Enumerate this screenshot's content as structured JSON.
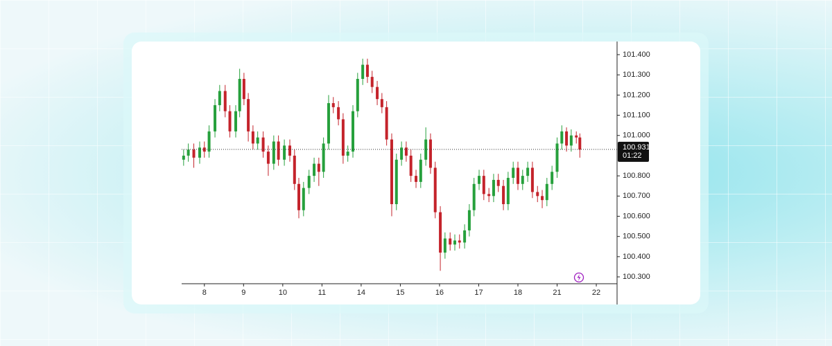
{
  "chart_data": {
    "type": "candlestick",
    "x": [
      -0.53,
      -0.41,
      -0.27,
      -0.12,
      0,
      0.12,
      0.27,
      0.39,
      0.53,
      0.65,
      0.8,
      0.9,
      1.01,
      1.12,
      1.24,
      1.36,
      1.5,
      1.63,
      1.77,
      1.89,
      2.04,
      2.18,
      2.3,
      2.41,
      2.53,
      2.67,
      2.8,
      2.92,
      3.04,
      3.17,
      3.29,
      3.42,
      3.54,
      3.66,
      3.79,
      3.91,
      4.04,
      4.16,
      4.28,
      4.41,
      4.53,
      4.65,
      4.78,
      4.9,
      5.03,
      5.15,
      5.27,
      5.4,
      5.52,
      5.65,
      5.77,
      5.89,
      6.02,
      6.14,
      6.27,
      6.39,
      6.51,
      6.64,
      6.76,
      6.88,
      7.01,
      7.13,
      7.26,
      7.38,
      7.5,
      7.63,
      7.75,
      7.88,
      8.0,
      8.12,
      8.25,
      8.37,
      8.5,
      8.62,
      8.74,
      8.87,
      9.0,
      9.12,
      9.24,
      9.36,
      9.49,
      9.58
    ],
    "open": [
      100.88,
      100.9,
      100.93,
      100.89,
      100.94,
      100.92,
      101.02,
      101.15,
      101.22,
      101.12,
      101.02,
      101.12,
      101.28,
      101.18,
      101.02,
      100.96,
      100.99,
      100.92,
      100.86,
      100.97,
      100.88,
      100.95,
      100.9,
      100.76,
      100.63,
      100.74,
      100.8,
      100.86,
      100.82,
      100.96,
      101.16,
      101.14,
      101.08,
      100.9,
      100.92,
      101.12,
      101.28,
      101.35,
      101.29,
      101.24,
      101.18,
      101.14,
      100.98,
      100.66,
      100.88,
      100.94,
      100.9,
      100.8,
      100.77,
      100.88,
      100.98,
      100.84,
      100.62,
      100.42,
      100.49,
      100.46,
      100.48,
      100.47,
      100.53,
      100.63,
      100.76,
      100.8,
      100.71,
      100.7,
      100.78,
      100.75,
      100.66,
      100.79,
      100.84,
      100.76,
      100.8,
      100.84,
      100.72,
      100.7,
      100.68,
      100.76,
      100.82,
      100.96,
      101.02,
      100.95,
      101.0,
      100.99
    ],
    "high": [
      100.93,
      100.96,
      100.96,
      100.97,
      100.97,
      101.05,
      101.18,
      101.25,
      101.25,
      101.15,
      101.15,
      101.33,
      101.31,
      101.21,
      101.05,
      101.02,
      101.02,
      100.95,
      101.0,
      101.0,
      100.98,
      100.98,
      100.93,
      100.79,
      100.77,
      100.83,
      100.89,
      100.89,
      100.99,
      101.2,
      101.19,
      101.17,
      101.11,
      100.95,
      101.15,
      101.31,
      101.38,
      101.38,
      101.32,
      101.27,
      101.21,
      101.17,
      101.01,
      100.91,
      100.97,
      100.97,
      100.93,
      100.83,
      100.91,
      101.04,
      101.01,
      100.87,
      100.65,
      100.52,
      100.52,
      100.51,
      100.51,
      100.56,
      100.66,
      100.79,
      100.83,
      100.83,
      100.74,
      100.81,
      100.81,
      100.78,
      100.82,
      100.87,
      100.87,
      100.83,
      100.87,
      100.87,
      100.75,
      100.73,
      100.79,
      100.85,
      100.99,
      101.05,
      101.04,
      101.03,
      101.02,
      101.01
    ],
    "low": [
      100.85,
      100.87,
      100.84,
      100.86,
      100.89,
      100.89,
      100.99,
      101.12,
      101.09,
      100.99,
      100.99,
      101.09,
      101.15,
      100.97,
      100.93,
      100.93,
      100.89,
      100.8,
      100.83,
      100.85,
      100.85,
      100.87,
      100.73,
      100.59,
      100.6,
      100.71,
      100.77,
      100.75,
      100.79,
      100.93,
      101.11,
      101.05,
      100.86,
      100.87,
      100.89,
      101.09,
      101.25,
      101.26,
      101.21,
      101.15,
      101.11,
      100.95,
      100.6,
      100.63,
      100.85,
      100.87,
      100.77,
      100.74,
      100.74,
      100.85,
      100.81,
      100.59,
      100.33,
      100.39,
      100.43,
      100.43,
      100.44,
      100.44,
      100.5,
      100.6,
      100.73,
      100.68,
      100.67,
      100.67,
      100.72,
      100.63,
      100.63,
      100.76,
      100.73,
      100.73,
      100.77,
      100.69,
      100.67,
      100.64,
      100.65,
      100.73,
      100.79,
      100.93,
      100.92,
      100.92,
      100.96,
      100.89
    ],
    "close": [
      100.9,
      100.93,
      100.89,
      100.94,
      100.92,
      101.02,
      101.15,
      101.22,
      101.12,
      101.02,
      101.12,
      101.28,
      101.18,
      101.02,
      100.96,
      100.99,
      100.92,
      100.86,
      100.97,
      100.88,
      100.95,
      100.9,
      100.76,
      100.63,
      100.74,
      100.8,
      100.86,
      100.82,
      100.96,
      101.16,
      101.14,
      101.08,
      100.9,
      100.92,
      101.12,
      101.28,
      101.35,
      101.29,
      101.24,
      101.18,
      101.14,
      100.98,
      100.66,
      100.88,
      100.94,
      100.9,
      100.8,
      100.77,
      100.88,
      100.98,
      100.84,
      100.62,
      100.42,
      100.49,
      100.46,
      100.48,
      100.47,
      100.53,
      100.63,
      100.76,
      100.8,
      100.71,
      100.7,
      100.78,
      100.75,
      100.66,
      100.79,
      100.84,
      100.76,
      100.8,
      100.84,
      100.72,
      100.7,
      100.68,
      100.76,
      100.82,
      100.96,
      101.02,
      100.95,
      101.0,
      100.99,
      100.93
    ],
    "up_color": "#26a03c",
    "down_color": "#c4232b",
    "xlim": [
      -0.58,
      10.53
    ],
    "xticks": [
      {
        "value": 0,
        "label": "8"
      },
      {
        "value": 1,
        "label": "9"
      },
      {
        "value": 2,
        "label": "10"
      },
      {
        "value": 3,
        "label": "11"
      },
      {
        "value": 4,
        "label": "14"
      },
      {
        "value": 5,
        "label": "15"
      },
      {
        "value": 6,
        "label": "16"
      },
      {
        "value": 7,
        "label": "17"
      },
      {
        "value": 8,
        "label": "18"
      },
      {
        "value": 9,
        "label": "21"
      },
      {
        "value": 10,
        "label": "22"
      }
    ],
    "ylim": [
      100.266,
      101.465
    ],
    "yticks": [
      {
        "value": 100.3,
        "label": "100.300"
      },
      {
        "value": 100.4,
        "label": "100.400"
      },
      {
        "value": 100.5,
        "label": "100.500"
      },
      {
        "value": 100.6,
        "label": "100.600"
      },
      {
        "value": 100.7,
        "label": "100.700"
      },
      {
        "value": 100.8,
        "label": "100.800"
      },
      {
        "value": 101.0,
        "label": "101.000"
      },
      {
        "value": 101.1,
        "label": "101.100"
      },
      {
        "value": 101.2,
        "label": "101.200"
      },
      {
        "value": 101.3,
        "label": "101.300"
      },
      {
        "value": 101.4,
        "label": "101.400"
      }
    ],
    "last_price": 100.931,
    "countdown": "01:22"
  }
}
